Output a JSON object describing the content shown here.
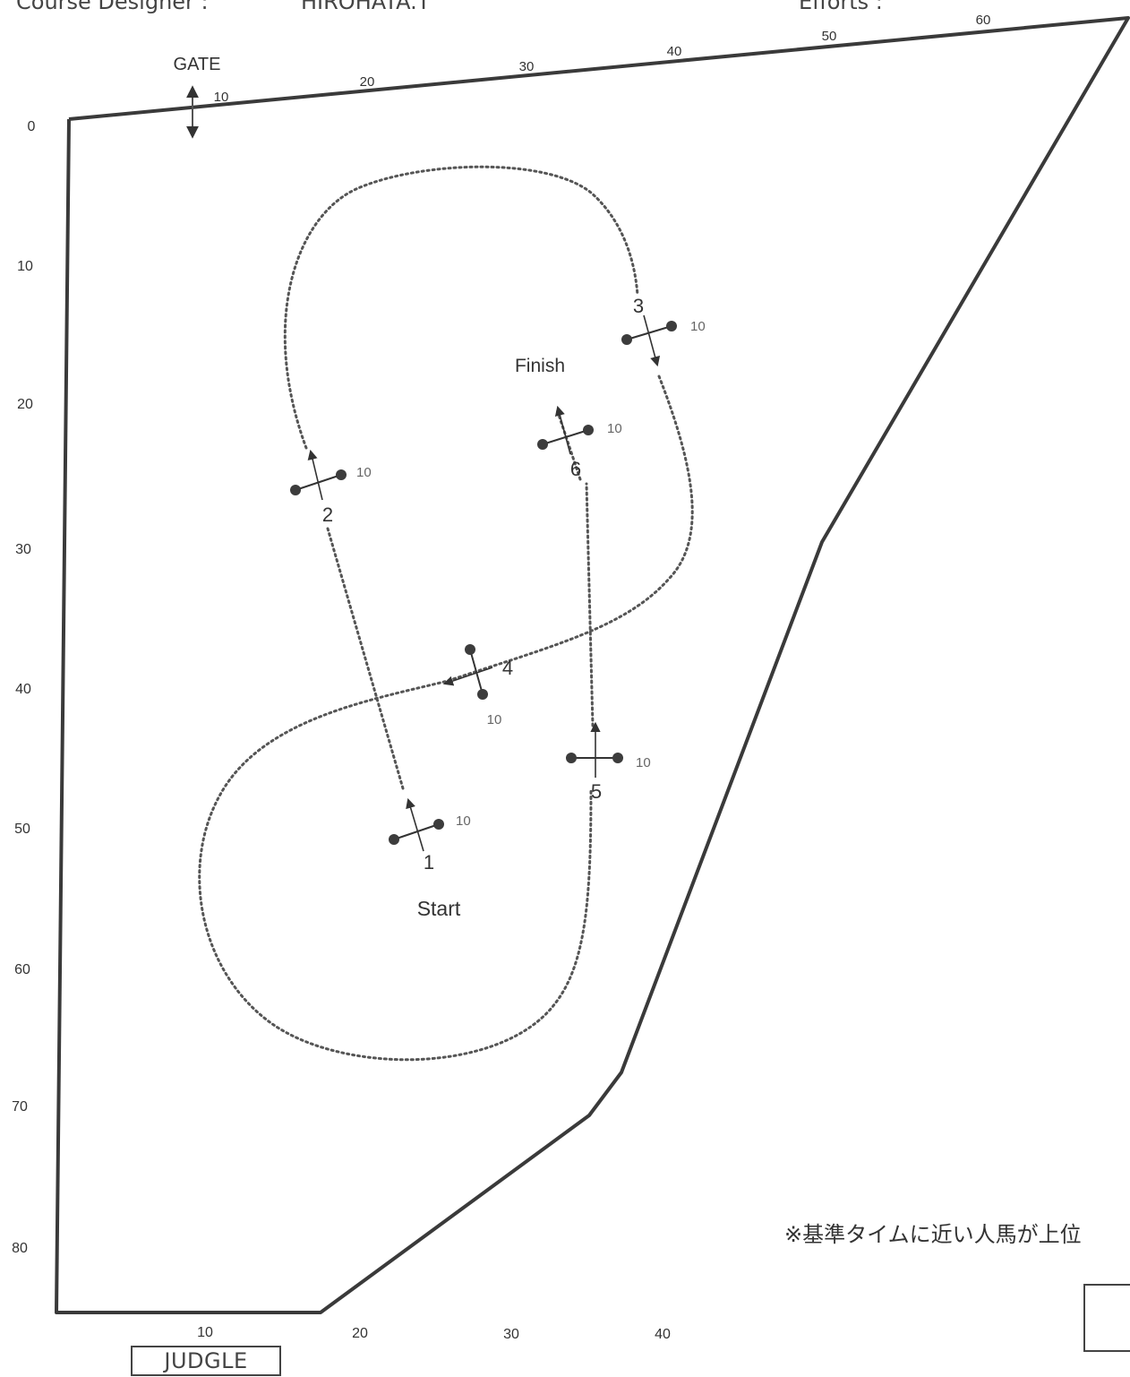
{
  "header": {
    "designer_label": "Course Designer  :",
    "designer_value": "HIROHATA.T",
    "efforts_label": "Efforts  :"
  },
  "labels": {
    "gate": "GATE",
    "start": "Start",
    "finish": "Finish",
    "judge": "JUDGLE",
    "note": "※基準タイムに近い人馬が上位"
  },
  "scales": {
    "left": [
      "0",
      "10",
      "20",
      "30",
      "40",
      "50",
      "60",
      "70",
      "80"
    ],
    "top": [
      "10",
      "20",
      "30",
      "40",
      "50",
      "60"
    ],
    "bottom": [
      "10",
      "20",
      "30",
      "40"
    ]
  },
  "obstacles": [
    {
      "number": "1",
      "width": "10"
    },
    {
      "number": "2",
      "width": "10"
    },
    {
      "number": "3",
      "width": "10"
    },
    {
      "number": "4",
      "width": "10"
    },
    {
      "number": "5",
      "width": "10"
    },
    {
      "number": "6",
      "width": "10"
    }
  ],
  "colors": {
    "fence": "#3a3a3a",
    "route": "#555555",
    "marker": "#3c3c3c"
  }
}
